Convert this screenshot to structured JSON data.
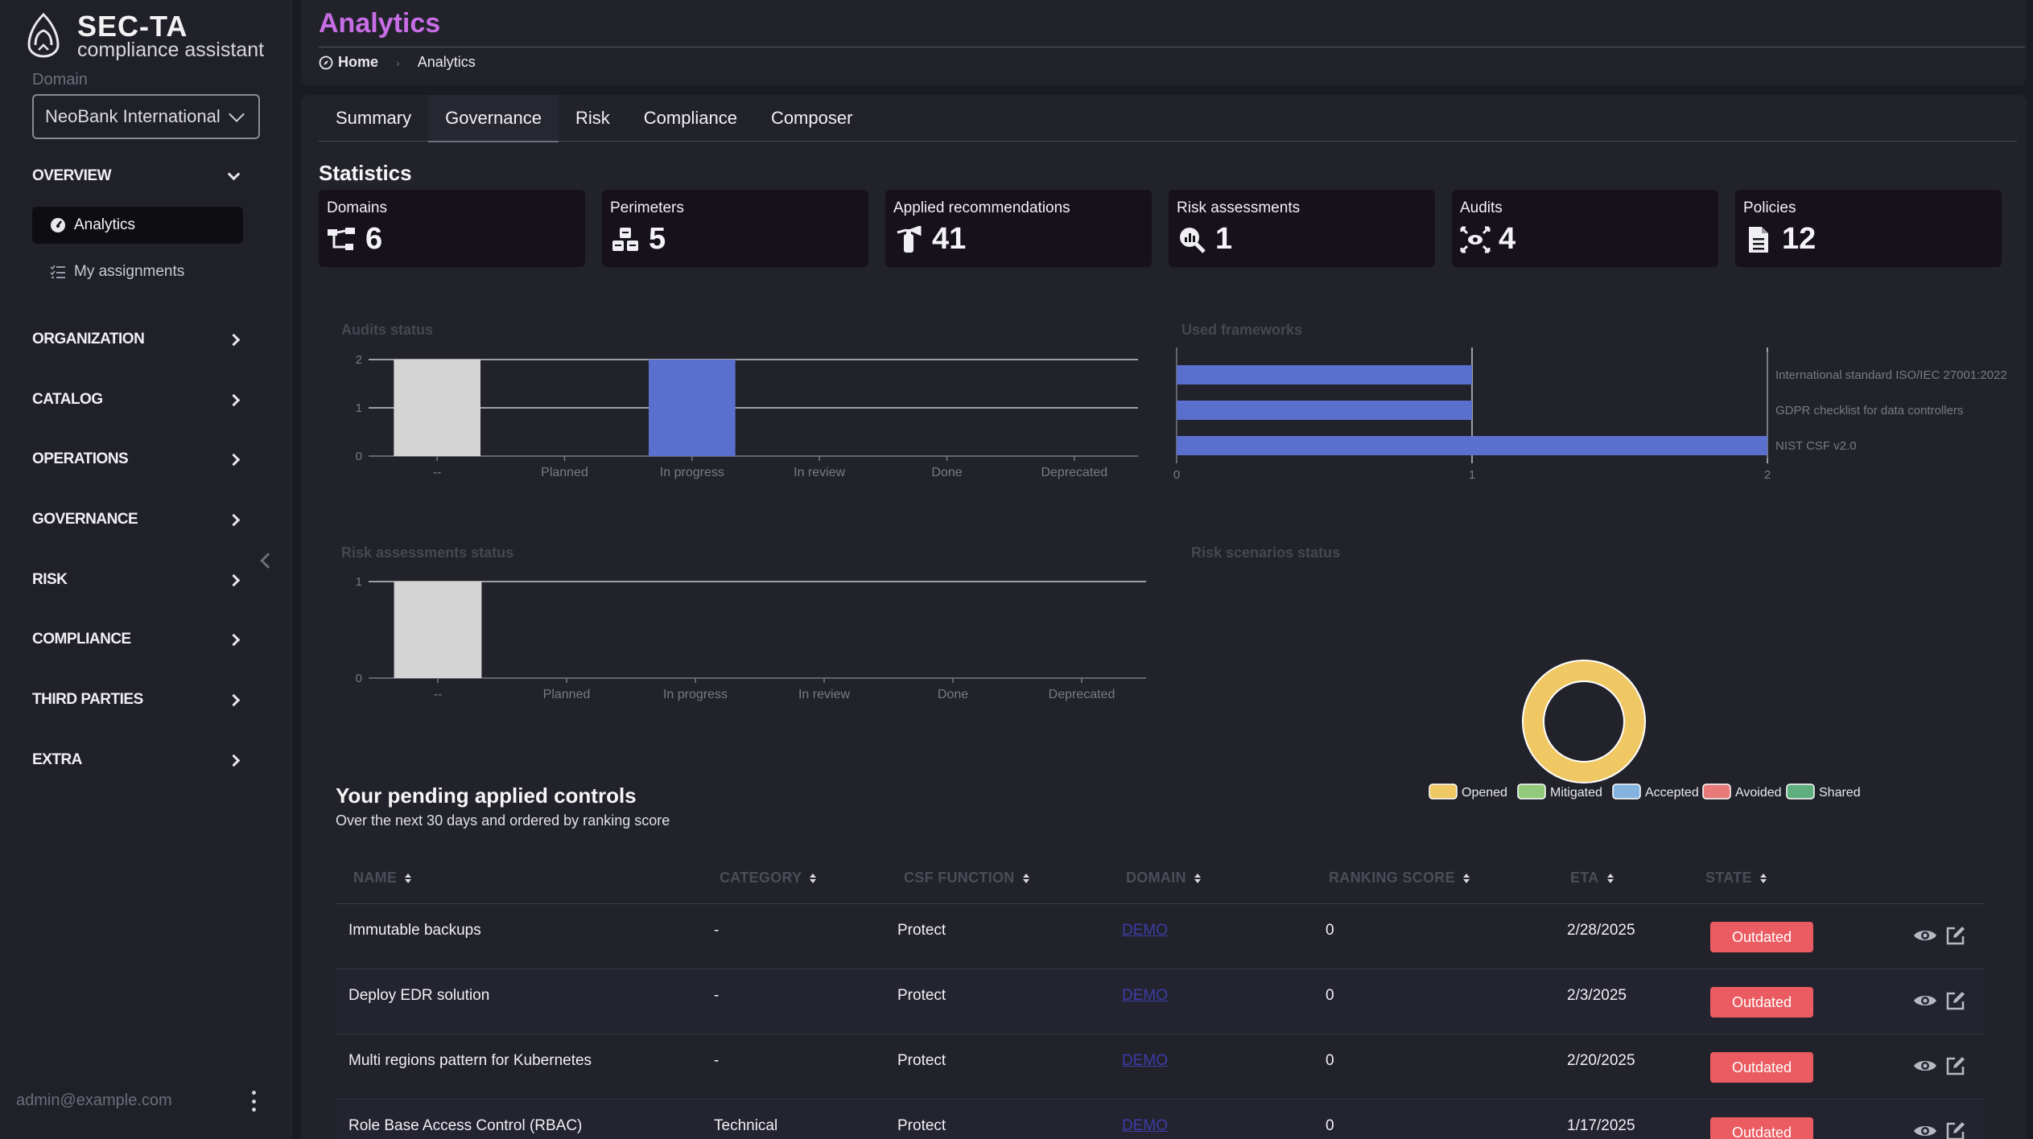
{
  "brand": {
    "title": "SEC-TA",
    "subtitle": "compliance assistant"
  },
  "sidebar": {
    "domain_label": "Domain",
    "domain_value": "NeoBank International",
    "groups": [
      {
        "label": "OVERVIEW",
        "expanded": true
      },
      {
        "label": "ORGANIZATION"
      },
      {
        "label": "CATALOG"
      },
      {
        "label": "OPERATIONS"
      },
      {
        "label": "GOVERNANCE"
      },
      {
        "label": "RISK"
      },
      {
        "label": "COMPLIANCE"
      },
      {
        "label": "THIRD PARTIES"
      },
      {
        "label": "EXTRA"
      }
    ],
    "overview_items": [
      {
        "label": "Analytics",
        "icon": "gauge-icon",
        "active": true
      },
      {
        "label": "My assignments",
        "icon": "list-check-icon"
      }
    ],
    "user_email": "admin@example.com"
  },
  "header": {
    "title": "Analytics",
    "breadcrumb": [
      {
        "label": "Home",
        "icon": "compass-icon"
      },
      {
        "label": "Analytics"
      }
    ]
  },
  "tabs": [
    {
      "label": "Summary"
    },
    {
      "label": "Governance",
      "active": true
    },
    {
      "label": "Risk"
    },
    {
      "label": "Compliance"
    },
    {
      "label": "Composer"
    }
  ],
  "statistics": {
    "title": "Statistics",
    "cards": [
      {
        "label": "Domains",
        "value": "6",
        "icon": "sitemap-icon"
      },
      {
        "label": "Perimeters",
        "value": "5",
        "icon": "cubes-icon"
      },
      {
        "label": "Applied recommendations",
        "value": "41",
        "icon": "fire-extinguisher-icon"
      },
      {
        "label": "Risk assessments",
        "value": "1",
        "icon": "magnifying-glass-chart-icon"
      },
      {
        "label": "Audits",
        "value": "4",
        "icon": "arrows-to-eye-icon"
      },
      {
        "label": "Policies",
        "value": "12",
        "icon": "file-lines-icon"
      }
    ]
  },
  "chart_data": [
    {
      "type": "bar",
      "title": "Audits status",
      "categories": [
        "--",
        "Planned",
        "In progress",
        "In review",
        "Done",
        "Deprecated"
      ],
      "values": [
        2,
        0,
        2,
        0,
        0,
        0
      ],
      "bar_colors": [
        "#d4d4d4",
        "#d4d4d4",
        "#5b6fcf",
        "#d4d4d4",
        "#d4d4d4",
        "#d4d4d4"
      ],
      "yticks": [
        "0",
        "1",
        "2"
      ],
      "ylim": [
        0,
        2
      ]
    },
    {
      "type": "bar",
      "orientation": "horizontal",
      "title": "Used frameworks",
      "categories": [
        "International standard ISO/IEC 27001:2022",
        "GDPR checklist for data controllers",
        "NIST CSF v2.0"
      ],
      "values": [
        1,
        1,
        2
      ],
      "color": "#5b6fcf",
      "xticks": [
        "0",
        "1",
        "2"
      ],
      "xlim": [
        0,
        2
      ]
    },
    {
      "type": "bar",
      "title": "Risk assessments status",
      "categories": [
        "--",
        "Planned",
        "In progress",
        "In review",
        "Done",
        "Deprecated"
      ],
      "values": [
        1,
        0,
        0,
        0,
        0,
        0
      ],
      "color": "#d4d4d4",
      "yticks": [
        "0",
        "1"
      ],
      "ylim": [
        0,
        1
      ]
    },
    {
      "type": "pie",
      "title": "Risk scenarios status",
      "categories": [
        "Opened",
        "Mitigated",
        "Accepted",
        "Avoided",
        "Shared"
      ],
      "values": [
        1,
        0,
        0,
        0,
        0
      ],
      "colors": [
        "#f0c863",
        "#92c97a",
        "#85b3e0",
        "#e77a78",
        "#5fae7e"
      ],
      "legend": "bottom"
    }
  ],
  "pending": {
    "title": "Your pending applied controls",
    "subtitle": "Over the next 30 days and ordered by ranking score",
    "columns": [
      "NAME",
      "CATEGORY",
      "CSF FUNCTION",
      "DOMAIN",
      "RANKING SCORE",
      "ETA",
      "STATE"
    ],
    "rows": [
      {
        "name": "Immutable backups",
        "category": "-",
        "csf": "Protect",
        "domain": "DEMO",
        "score": "0",
        "eta": "2/28/2025",
        "state": "Outdated"
      },
      {
        "name": "Deploy EDR solution",
        "category": "-",
        "csf": "Protect",
        "domain": "DEMO",
        "score": "0",
        "eta": "2/3/2025",
        "state": "Outdated"
      },
      {
        "name": "Multi regions pattern for Kubernetes",
        "category": "-",
        "csf": "Protect",
        "domain": "DEMO",
        "score": "0",
        "eta": "2/20/2025",
        "state": "Outdated"
      },
      {
        "name": "Role Base Access Control (RBAC)",
        "category": "Technical",
        "csf": "Protect",
        "domain": "DEMO",
        "score": "0",
        "eta": "1/17/2025",
        "state": "Outdated"
      }
    ]
  },
  "colors": {
    "accent": "#c86de6",
    "badge": "#ea5c61",
    "bar": "#5b6fcf"
  }
}
